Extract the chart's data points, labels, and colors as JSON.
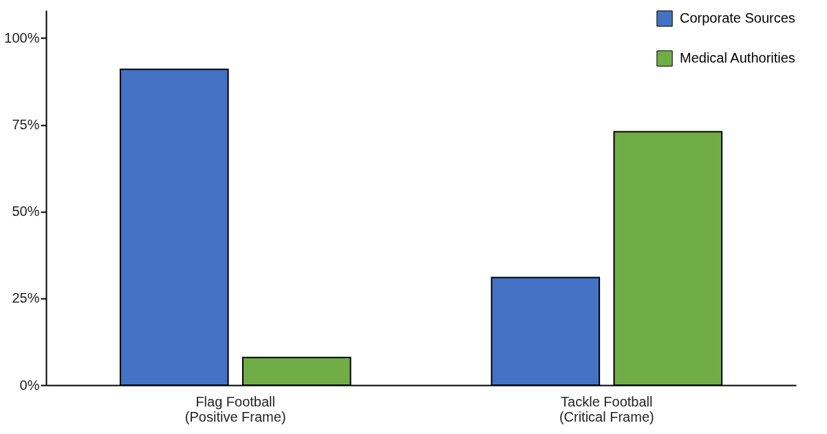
{
  "chart_data": {
    "type": "bar",
    "categories": [
      "Flag Football\n(Positive Frame)",
      "Tackle Football\n(Critical Frame)"
    ],
    "series": [
      {
        "name": "Corporate Sources",
        "color": "#4472c4",
        "values": [
          91,
          31
        ]
      },
      {
        "name": "Medical Authorities",
        "color": "#70ad47",
        "values": [
          8,
          73
        ]
      }
    ],
    "ylim": [
      0,
      108
    ],
    "yticks": [
      {
        "value": 0,
        "label": "0%"
      },
      {
        "value": 25,
        "label": "25%"
      },
      {
        "value": 50,
        "label": "50%"
      },
      {
        "value": 75,
        "label": "75%"
      },
      {
        "value": 100,
        "label": "100%"
      }
    ],
    "grid": false,
    "legend": "top right"
  }
}
